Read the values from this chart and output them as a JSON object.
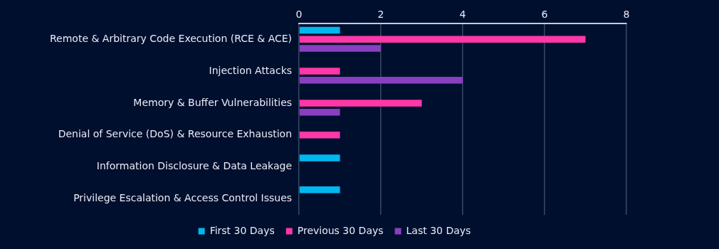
{
  "chart_data": {
    "type": "bar",
    "orientation": "horizontal",
    "categories": [
      "Remote & Arbitrary Code Execution (RCE & ACE)",
      "Injection Attacks",
      "Memory & Buffer Vulnerabilities",
      "Denial of Service (DoS) & Resource Exhaustion",
      "Information Disclosure & Data Leakage",
      "Privilege Escalation & Access Control Issues"
    ],
    "series": [
      {
        "name": "First 30 Days",
        "color": "#00b8f0",
        "values": [
          1,
          0,
          0,
          0,
          1,
          1
        ]
      },
      {
        "name": "Previous 30 Days",
        "color": "#ff38a8",
        "values": [
          7,
          1,
          3,
          1,
          0,
          0
        ]
      },
      {
        "name": "Last 30 Days",
        "color": "#8a3fc0",
        "values": [
          2,
          4,
          1,
          0,
          0,
          0
        ]
      }
    ],
    "xlim": [
      0,
      8
    ],
    "xticks": [
      0,
      2,
      4,
      6,
      8
    ],
    "grid": "x",
    "legend": "bottom"
  }
}
